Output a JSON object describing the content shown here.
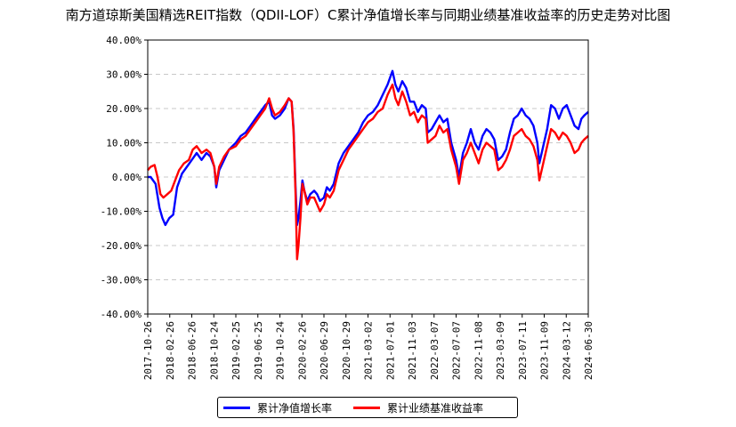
{
  "chart_data": {
    "type": "line",
    "title": "南方道琼斯美国精选REIT指数（QDII-LOF）C累计净值增长率与同期业绩基准收益率的历史走势对比图",
    "y_ticks": [
      "-40.00%",
      "-30.00%",
      "-20.00%",
      "-10.00%",
      "0.00%",
      "10.00%",
      "20.00%",
      "30.00%",
      "40.00%"
    ],
    "ylim": [
      -40,
      40
    ],
    "x_ticks": [
      "2017-10-26",
      "2018-02-26",
      "2018-06-26",
      "2018-10-24",
      "2019-02-25",
      "2019-06-25",
      "2019-10-24",
      "2020-02-26",
      "2020-06-29",
      "2020-10-29",
      "2021-03-02",
      "2021-07-01",
      "2021-11-03",
      "2022-03-07",
      "2022-07-07",
      "2022-11-08",
      "2023-03-09",
      "2023-07-11",
      "2023-11-09",
      "2024-03-12",
      "2024-06-30"
    ],
    "grid": "horizontal-dashed",
    "legend_position": "bottom-center",
    "series": [
      {
        "name": "累计净值增长率",
        "color": "#0000ff",
        "points": [
          [
            0,
            0
          ],
          [
            0.3,
            0
          ],
          [
            0.8,
            -2
          ],
          [
            1.2,
            -9
          ],
          [
            1.5,
            -12
          ],
          [
            1.8,
            -14
          ],
          [
            2.2,
            -12
          ],
          [
            2.6,
            -11
          ],
          [
            3.0,
            -3
          ],
          [
            3.5,
            1
          ],
          [
            4.0,
            3
          ],
          [
            4.5,
            5
          ],
          [
            5.0,
            7
          ],
          [
            5.5,
            5
          ],
          [
            6.0,
            7
          ],
          [
            6.4,
            6
          ],
          [
            6.8,
            3
          ],
          [
            7.0,
            -3
          ],
          [
            7.3,
            2
          ],
          [
            7.8,
            5
          ],
          [
            8.3,
            8
          ],
          [
            9.0,
            10
          ],
          [
            9.5,
            12
          ],
          [
            10.0,
            13
          ],
          [
            10.5,
            15
          ],
          [
            11.0,
            17
          ],
          [
            11.5,
            19
          ],
          [
            12.0,
            21
          ],
          [
            12.4,
            22
          ],
          [
            12.7,
            18
          ],
          [
            13.0,
            17
          ],
          [
            13.5,
            18
          ],
          [
            14.0,
            20
          ],
          [
            14.4,
            23
          ],
          [
            14.7,
            22
          ],
          [
            14.9,
            14
          ],
          [
            15.1,
            -3
          ],
          [
            15.25,
            -14
          ],
          [
            15.4,
            -12
          ],
          [
            15.6,
            -7
          ],
          [
            15.8,
            -1
          ],
          [
            16.0,
            -4
          ],
          [
            16.3,
            -7
          ],
          [
            16.6,
            -5
          ],
          [
            17.0,
            -4
          ],
          [
            17.3,
            -5
          ],
          [
            17.6,
            -7
          ],
          [
            18.0,
            -6
          ],
          [
            18.3,
            -3
          ],
          [
            18.6,
            -4
          ],
          [
            19.0,
            -2
          ],
          [
            19.5,
            4
          ],
          [
            20.0,
            7
          ],
          [
            20.5,
            9
          ],
          [
            21.0,
            11
          ],
          [
            21.5,
            13
          ],
          [
            22.0,
            16
          ],
          [
            22.5,
            18
          ],
          [
            23.0,
            19
          ],
          [
            23.5,
            21
          ],
          [
            24.0,
            24
          ],
          [
            24.5,
            27
          ],
          [
            25.0,
            31
          ],
          [
            25.3,
            27
          ],
          [
            25.6,
            25
          ],
          [
            26.0,
            28
          ],
          [
            26.4,
            26
          ],
          [
            26.8,
            22
          ],
          [
            27.2,
            22
          ],
          [
            27.6,
            19
          ],
          [
            28.0,
            21
          ],
          [
            28.4,
            20
          ],
          [
            28.6,
            13
          ],
          [
            29.0,
            14
          ],
          [
            29.4,
            16
          ],
          [
            29.8,
            18
          ],
          [
            30.2,
            16
          ],
          [
            30.6,
            17
          ],
          [
            31.0,
            10
          ],
          [
            31.5,
            5
          ],
          [
            31.8,
            0
          ],
          [
            32.2,
            7
          ],
          [
            32.6,
            10
          ],
          [
            33.0,
            14
          ],
          [
            33.4,
            10
          ],
          [
            33.8,
            8
          ],
          [
            34.2,
            12
          ],
          [
            34.6,
            14
          ],
          [
            35.0,
            13
          ],
          [
            35.4,
            11
          ],
          [
            35.8,
            5
          ],
          [
            36.2,
            6
          ],
          [
            36.6,
            8
          ],
          [
            37.0,
            13
          ],
          [
            37.4,
            17
          ],
          [
            37.8,
            18
          ],
          [
            38.2,
            20
          ],
          [
            38.6,
            18
          ],
          [
            39.0,
            17
          ],
          [
            39.4,
            15
          ],
          [
            39.8,
            10
          ],
          [
            40.0,
            4
          ],
          [
            40.4,
            9
          ],
          [
            40.8,
            14
          ],
          [
            41.2,
            21
          ],
          [
            41.6,
            20
          ],
          [
            42.0,
            17
          ],
          [
            42.4,
            20
          ],
          [
            42.8,
            21
          ],
          [
            43.2,
            18
          ],
          [
            43.6,
            15
          ],
          [
            44.0,
            14
          ],
          [
            44.3,
            17
          ],
          [
            44.6,
            18
          ],
          [
            45.0,
            19
          ]
        ]
      },
      {
        "name": "累计业绩基准收益率",
        "color": "#ff0000",
        "points": [
          [
            0,
            2
          ],
          [
            0.3,
            3
          ],
          [
            0.7,
            3.5
          ],
          [
            1.0,
            0
          ],
          [
            1.3,
            -5
          ],
          [
            1.6,
            -6
          ],
          [
            2.0,
            -5
          ],
          [
            2.4,
            -4
          ],
          [
            2.8,
            -1
          ],
          [
            3.2,
            2
          ],
          [
            3.7,
            4
          ],
          [
            4.2,
            5
          ],
          [
            4.6,
            8
          ],
          [
            5.0,
            9
          ],
          [
            5.5,
            7
          ],
          [
            6.0,
            8
          ],
          [
            6.4,
            7
          ],
          [
            6.8,
            3
          ],
          [
            7.0,
            -2
          ],
          [
            7.3,
            3
          ],
          [
            7.8,
            6
          ],
          [
            8.3,
            8
          ],
          [
            9.0,
            9
          ],
          [
            9.5,
            11
          ],
          [
            10.0,
            12
          ],
          [
            10.5,
            14
          ],
          [
            11.0,
            16
          ],
          [
            11.5,
            18
          ],
          [
            12.0,
            20
          ],
          [
            12.4,
            23
          ],
          [
            12.7,
            20
          ],
          [
            13.0,
            18
          ],
          [
            13.5,
            19
          ],
          [
            14.0,
            21
          ],
          [
            14.4,
            23
          ],
          [
            14.7,
            22
          ],
          [
            14.9,
            13
          ],
          [
            15.1,
            -5
          ],
          [
            15.25,
            -24
          ],
          [
            15.4,
            -20
          ],
          [
            15.6,
            -12
          ],
          [
            15.8,
            -2
          ],
          [
            16.0,
            -4
          ],
          [
            16.3,
            -8
          ],
          [
            16.6,
            -6
          ],
          [
            17.0,
            -6
          ],
          [
            17.3,
            -8
          ],
          [
            17.6,
            -10
          ],
          [
            18.0,
            -8
          ],
          [
            18.3,
            -5
          ],
          [
            18.6,
            -6
          ],
          [
            19.0,
            -4
          ],
          [
            19.5,
            2
          ],
          [
            20.0,
            5
          ],
          [
            20.5,
            8
          ],
          [
            21.0,
            10
          ],
          [
            21.5,
            12
          ],
          [
            22.0,
            14
          ],
          [
            22.5,
            16
          ],
          [
            23.0,
            17
          ],
          [
            23.5,
            19
          ],
          [
            24.0,
            20
          ],
          [
            24.5,
            24
          ],
          [
            25.0,
            27
          ],
          [
            25.3,
            23
          ],
          [
            25.6,
            21
          ],
          [
            26.0,
            25
          ],
          [
            26.4,
            22
          ],
          [
            26.8,
            18
          ],
          [
            27.2,
            19
          ],
          [
            27.6,
            16
          ],
          [
            28.0,
            18
          ],
          [
            28.4,
            17
          ],
          [
            28.6,
            10
          ],
          [
            29.0,
            11
          ],
          [
            29.4,
            12
          ],
          [
            29.8,
            15
          ],
          [
            30.2,
            13
          ],
          [
            30.6,
            14
          ],
          [
            31.0,
            8
          ],
          [
            31.5,
            3
          ],
          [
            31.8,
            -2
          ],
          [
            32.2,
            5
          ],
          [
            32.6,
            7
          ],
          [
            33.0,
            10
          ],
          [
            33.4,
            7
          ],
          [
            33.8,
            4
          ],
          [
            34.2,
            8
          ],
          [
            34.6,
            10
          ],
          [
            35.0,
            9
          ],
          [
            35.4,
            8
          ],
          [
            35.8,
            2
          ],
          [
            36.2,
            3
          ],
          [
            36.6,
            5
          ],
          [
            37.0,
            8
          ],
          [
            37.4,
            12
          ],
          [
            37.8,
            13
          ],
          [
            38.2,
            14
          ],
          [
            38.6,
            12
          ],
          [
            39.0,
            11
          ],
          [
            39.4,
            9
          ],
          [
            39.8,
            5
          ],
          [
            40.0,
            -1
          ],
          [
            40.4,
            4
          ],
          [
            40.8,
            9
          ],
          [
            41.2,
            14
          ],
          [
            41.6,
            13
          ],
          [
            42.0,
            11
          ],
          [
            42.4,
            13
          ],
          [
            42.8,
            12
          ],
          [
            43.2,
            10
          ],
          [
            43.6,
            7
          ],
          [
            44.0,
            8
          ],
          [
            44.3,
            10
          ],
          [
            44.6,
            11
          ],
          [
            45.0,
            12
          ]
        ]
      }
    ]
  }
}
